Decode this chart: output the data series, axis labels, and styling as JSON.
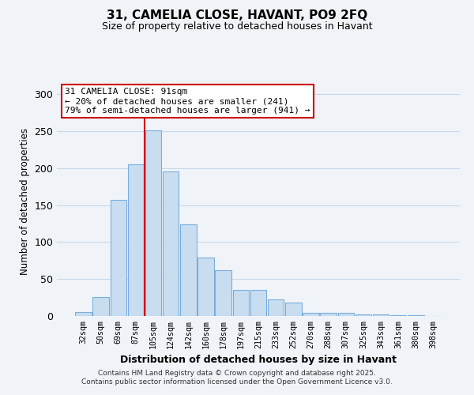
{
  "title": "31, CAMELIA CLOSE, HAVANT, PO9 2FQ",
  "subtitle": "Size of property relative to detached houses in Havant",
  "xlabel": "Distribution of detached houses by size in Havant",
  "ylabel": "Number of detached properties",
  "bar_labels": [
    "32sqm",
    "50sqm",
    "69sqm",
    "87sqm",
    "105sqm",
    "124sqm",
    "142sqm",
    "160sqm",
    "178sqm",
    "197sqm",
    "215sqm",
    "233sqm",
    "252sqm",
    "270sqm",
    "288sqm",
    "307sqm",
    "325sqm",
    "343sqm",
    "361sqm",
    "380sqm",
    "398sqm"
  ],
  "bar_values": [
    5,
    26,
    157,
    205,
    251,
    196,
    124,
    79,
    62,
    35,
    35,
    22,
    18,
    4,
    4,
    4,
    2,
    2,
    1,
    1,
    0
  ],
  "bar_color": "#c9ddf0",
  "bar_edge_color": "#7aaedc",
  "vline_x": 3.5,
  "vline_color": "#cc0000",
  "annotation_title": "31 CAMELIA CLOSE: 91sqm",
  "annotation_line1": "← 20% of detached houses are smaller (241)",
  "annotation_line2": "79% of semi-detached houses are larger (941) →",
  "annotation_box_color": "#ffffff",
  "annotation_box_edge": "#cc0000",
  "ylim": [
    0,
    310
  ],
  "yticks": [
    0,
    50,
    100,
    150,
    200,
    250,
    300
  ],
  "footer1": "Contains HM Land Registry data © Crown copyright and database right 2025.",
  "footer2": "Contains public sector information licensed under the Open Government Licence v3.0.",
  "bg_color": "#f0f4f9",
  "grid_color": "#c8d8e8",
  "title_fontsize": 11,
  "subtitle_fontsize": 9
}
